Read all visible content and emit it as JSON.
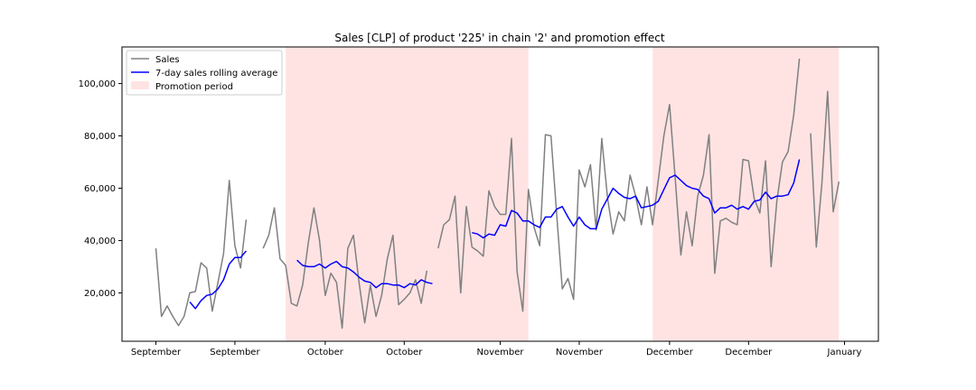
{
  "chart_data": {
    "type": "line",
    "title": "Sales [CLP] of product '225' in chain '2' and promotion effect",
    "xlabel": "",
    "ylabel": "",
    "ylim": [
      1500,
      114000
    ],
    "xlim": [
      -6,
      128
    ],
    "grid": false,
    "legend_placement": "top-left",
    "x_ticks": [
      {
        "x": 0,
        "label": "September"
      },
      {
        "x": 14,
        "label": "September"
      },
      {
        "x": 30,
        "label": "October"
      },
      {
        "x": 44,
        "label": "October"
      },
      {
        "x": 61,
        "label": "November"
      },
      {
        "x": 75,
        "label": "November"
      },
      {
        "x": 91,
        "label": "December"
      },
      {
        "x": 105,
        "label": "December"
      },
      {
        "x": 122,
        "label": "January"
      }
    ],
    "y_ticks": [
      {
        "y": 20000,
        "label": "20,000"
      },
      {
        "y": 40000,
        "label": "40,000"
      },
      {
        "y": 60000,
        "label": "60,000"
      },
      {
        "y": 80000,
        "label": "80,000"
      },
      {
        "y": 100000,
        "label": "100,000"
      }
    ],
    "promotion_periods": [
      [
        23,
        66
      ],
      [
        88,
        121
      ]
    ],
    "series": [
      {
        "name": "Sales",
        "color": "#808080",
        "points": [
          [
            0,
            37000
          ],
          [
            1,
            11000
          ],
          [
            2,
            15000
          ],
          [
            3,
            11000
          ],
          [
            4,
            7500
          ],
          [
            5,
            11000
          ],
          [
            6,
            20000
          ],
          [
            7,
            20500
          ],
          [
            8,
            31500
          ],
          [
            9,
            29500
          ],
          [
            10,
            13000
          ],
          [
            11,
            24000
          ],
          [
            12,
            35000
          ],
          [
            13,
            63000
          ],
          [
            14,
            38000
          ],
          [
            15,
            29500
          ],
          [
            16,
            48000
          ],
          null,
          [
            19,
            37000
          ],
          [
            20,
            42000
          ],
          [
            21,
            52500
          ],
          [
            22,
            33000
          ],
          [
            23,
            30500
          ],
          [
            24,
            16000
          ],
          [
            25,
            15000
          ],
          [
            26,
            23000
          ],
          [
            27,
            39000
          ],
          [
            28,
            52500
          ],
          [
            29,
            40000
          ],
          [
            30,
            19000
          ],
          [
            31,
            27500
          ],
          [
            32,
            24000
          ],
          [
            33,
            6500
          ],
          [
            34,
            37000
          ],
          [
            35,
            42000
          ],
          [
            36,
            24000
          ],
          [
            37,
            8500
          ],
          [
            38,
            23000
          ],
          [
            39,
            11000
          ],
          [
            40,
            19000
          ],
          [
            41,
            33000
          ],
          [
            42,
            42000
          ],
          [
            43,
            15500
          ],
          [
            44,
            17500
          ],
          [
            45,
            20000
          ],
          [
            46,
            25000
          ],
          [
            47,
            16000
          ],
          [
            48,
            28500
          ],
          null,
          [
            50,
            37000
          ],
          [
            51,
            46000
          ],
          [
            52,
            48000
          ],
          [
            53,
            57000
          ],
          [
            54,
            20000
          ],
          [
            55,
            53000
          ],
          [
            56,
            37500
          ],
          [
            57,
            36000
          ],
          [
            58,
            34000
          ],
          [
            59,
            59000
          ],
          [
            60,
            53000
          ],
          [
            61,
            50000
          ],
          [
            62,
            50000
          ],
          [
            63,
            79000
          ],
          [
            64,
            28000
          ],
          [
            65,
            13000
          ],
          [
            66,
            59500
          ],
          [
            67,
            45000
          ],
          [
            68,
            38000
          ],
          [
            69,
            80500
          ],
          [
            70,
            80000
          ],
          [
            71,
            50000
          ],
          [
            72,
            21500
          ],
          [
            73,
            25500
          ],
          [
            74,
            17500
          ],
          [
            75,
            67000
          ],
          [
            76,
            60500
          ],
          [
            77,
            69000
          ],
          [
            78,
            44000
          ],
          [
            79,
            79000
          ],
          [
            80,
            56500
          ],
          [
            81,
            42500
          ],
          [
            82,
            51000
          ],
          [
            83,
            47500
          ],
          [
            84,
            65000
          ],
          [
            85,
            57000
          ],
          [
            86,
            46000
          ],
          [
            87,
            60500
          ],
          [
            88,
            46000
          ],
          [
            89,
            63000
          ],
          [
            90,
            80000
          ],
          [
            91,
            92000
          ],
          [
            92,
            64000
          ],
          [
            93,
            34500
          ],
          [
            94,
            51000
          ],
          [
            95,
            38000
          ],
          [
            96,
            57000
          ],
          [
            97,
            65000
          ],
          [
            98,
            80500
          ],
          [
            99,
            27500
          ],
          [
            100,
            47500
          ],
          [
            101,
            48500
          ],
          [
            102,
            47000
          ],
          [
            103,
            46000
          ],
          [
            104,
            71000
          ],
          [
            105,
            70500
          ],
          [
            106,
            56000
          ],
          [
            107,
            50500
          ],
          [
            108,
            70500
          ],
          [
            109,
            30000
          ],
          [
            110,
            55000
          ],
          [
            111,
            70000
          ],
          [
            112,
            74000
          ],
          [
            113,
            88000
          ],
          [
            114,
            109500
          ],
          null,
          [
            116,
            81000
          ],
          [
            117,
            37500
          ],
          [
            118,
            62000
          ],
          [
            119,
            97000
          ],
          [
            120,
            51000
          ],
          [
            121,
            62500
          ]
        ]
      },
      {
        "name": "7-day sales rolling average",
        "color": "#0000ff",
        "points": [
          [
            6,
            16500
          ],
          [
            7,
            14000
          ],
          [
            8,
            17000
          ],
          [
            9,
            19000
          ],
          [
            10,
            19500
          ],
          [
            11,
            21500
          ],
          [
            12,
            25000
          ],
          [
            13,
            31000
          ],
          [
            14,
            33500
          ],
          [
            15,
            33500
          ],
          [
            16,
            36000
          ],
          null,
          [
            25,
            32500
          ],
          [
            26,
            30500
          ],
          [
            27,
            30000
          ],
          [
            28,
            30000
          ],
          [
            29,
            31000
          ],
          [
            30,
            29500
          ],
          [
            31,
            31000
          ],
          [
            32,
            32000
          ],
          [
            33,
            30000
          ],
          [
            34,
            29500
          ],
          [
            35,
            28000
          ],
          [
            36,
            26000
          ],
          [
            37,
            24500
          ],
          [
            38,
            24000
          ],
          [
            39,
            22000
          ],
          [
            40,
            23500
          ],
          [
            41,
            23500
          ],
          [
            42,
            23000
          ],
          [
            43,
            23000
          ],
          [
            44,
            22000
          ],
          [
            45,
            23500
          ],
          [
            46,
            23000
          ],
          [
            47,
            25000
          ],
          [
            48,
            24000
          ],
          [
            49,
            23500
          ],
          null,
          [
            56,
            43000
          ],
          [
            57,
            42500
          ],
          [
            58,
            41000
          ],
          [
            59,
            42500
          ],
          [
            60,
            42000
          ],
          [
            61,
            46000
          ],
          [
            62,
            45500
          ],
          [
            63,
            51500
          ],
          [
            64,
            50500
          ],
          [
            65,
            47500
          ],
          [
            66,
            47500
          ],
          [
            67,
            46000
          ],
          [
            68,
            45000
          ],
          [
            69,
            49000
          ],
          [
            70,
            49000
          ],
          [
            71,
            52000
          ],
          [
            72,
            53000
          ],
          [
            73,
            49000
          ],
          [
            74,
            45500
          ],
          [
            75,
            49000
          ],
          [
            76,
            46000
          ],
          [
            77,
            44500
          ],
          [
            78,
            44500
          ],
          [
            79,
            52000
          ],
          [
            80,
            56000
          ],
          [
            81,
            60000
          ],
          [
            82,
            58000
          ],
          [
            83,
            56500
          ],
          [
            84,
            56000
          ],
          [
            85,
            57000
          ],
          [
            86,
            52500
          ],
          [
            87,
            53000
          ],
          [
            88,
            53500
          ],
          [
            89,
            55000
          ],
          [
            90,
            59500
          ],
          [
            91,
            64000
          ],
          [
            92,
            65000
          ],
          [
            93,
            63000
          ],
          [
            94,
            61000
          ],
          [
            95,
            60000
          ],
          [
            96,
            59500
          ],
          [
            97,
            57000
          ],
          [
            98,
            56000
          ],
          [
            99,
            50500
          ],
          [
            100,
            52500
          ],
          [
            101,
            52500
          ],
          [
            102,
            53500
          ],
          [
            103,
            52000
          ],
          [
            104,
            53000
          ],
          [
            105,
            52000
          ],
          [
            106,
            55000
          ],
          [
            107,
            55500
          ],
          [
            108,
            58500
          ],
          [
            109,
            56000
          ],
          [
            110,
            57000
          ],
          [
            111,
            57000
          ],
          [
            112,
            57500
          ],
          [
            113,
            62000
          ],
          [
            114,
            71000
          ]
        ]
      }
    ],
    "legend": [
      {
        "label": "Sales",
        "kind": "line",
        "color": "#808080"
      },
      {
        "label": "7-day sales rolling average",
        "kind": "line",
        "color": "#0000ff"
      },
      {
        "label": "Promotion period",
        "kind": "patch",
        "color": "#ffcccc"
      }
    ]
  }
}
